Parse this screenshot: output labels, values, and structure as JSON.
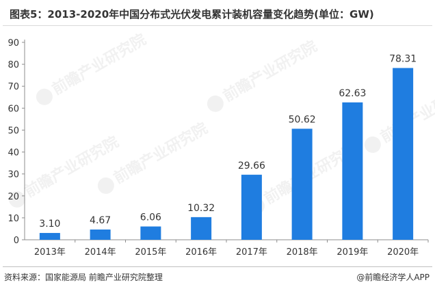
{
  "title": "图表5：2013-2020年中国分布式光伏发电累计装机容量变化趋势(单位：GW)",
  "source_text": "资料来源：国家能源局 前瞻产业研究院整理",
  "brand_text": "@前瞻经济学人APP",
  "watermark_text": "前瞻产业研究院",
  "colors": {
    "bar": "#1f7de0",
    "axis": "#8c8c8c"
  },
  "chart_data": {
    "type": "bar",
    "title": "图表5：2013-2020年中国分布式光伏发电累计装机容量变化趋势(单位：GW)",
    "categories": [
      "2013年",
      "2014年",
      "2015年",
      "2016年",
      "2017年",
      "2018年",
      "2019年",
      "2020年"
    ],
    "values": [
      3.1,
      4.67,
      6.06,
      10.32,
      29.66,
      50.62,
      62.63,
      78.31
    ],
    "value_labels": [
      "3.10",
      "4.67",
      "6.06",
      "10.32",
      "29.66",
      "50.62",
      "62.63",
      "78.31"
    ],
    "y_ticks": [
      "0",
      "10",
      "20",
      "30",
      "40",
      "50",
      "60",
      "70",
      "80",
      "90"
    ],
    "ylim": [
      0,
      90
    ],
    "xlabel": "",
    "ylabel": "",
    "grid": false,
    "legend": "none"
  }
}
